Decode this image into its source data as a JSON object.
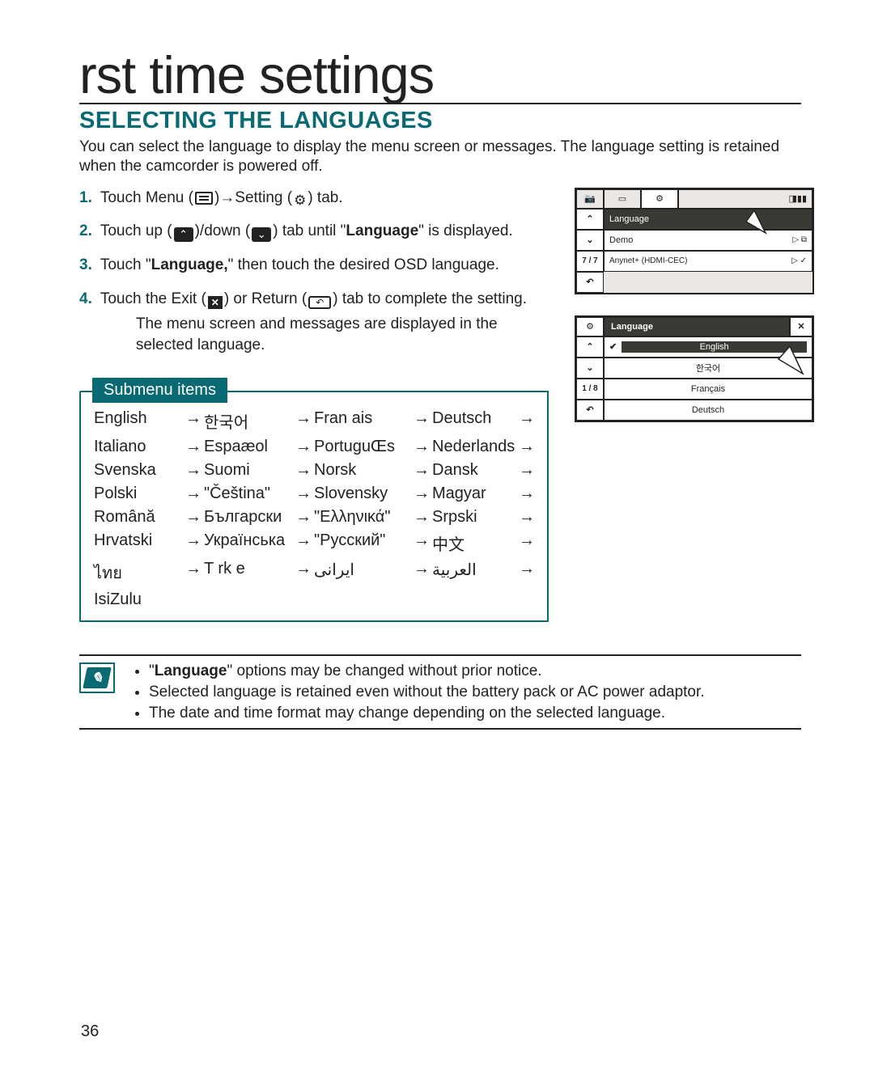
{
  "page_number": "36",
  "title": "rst time settings",
  "section": "SELECTING THE LANGUAGES",
  "intro": "You can select the language to display the menu screen or messages. The language setting is retained when the camcorder is powered off.",
  "colors": {
    "accent": "#0a6a74",
    "text": "#222222",
    "lcd_bg": "#e9e6e3",
    "lcd_highlight_bg": "#3a3934"
  },
  "steps": [
    {
      "num": "1.",
      "prefix": "Touch Menu (",
      "mid": ")→Setting (",
      "suffix": ") tab."
    },
    {
      "num": "2.",
      "prefix": "Touch up (",
      "mid": ")/down (",
      "suffix_pre": ") tab until \"",
      "bold": "Language",
      "suffix_post": "\" is displayed."
    },
    {
      "num": "3.",
      "prefix": "Touch \"",
      "bold": "Language,",
      "suffix": "\" then touch the desired OSD language."
    },
    {
      "num": "4.",
      "prefix": "Touch the Exit (",
      "mid": ") or Return (",
      "suffix": ") tab to complete the setting.",
      "bullet": "The menu screen and messages are displayed in the selected language."
    }
  ],
  "lcd1": {
    "status_icons": [
      "📷",
      "▭",
      "⚙",
      "◨▮▮"
    ],
    "page": "7 / 7",
    "rows": [
      {
        "label": "Language",
        "highlight": true
      },
      {
        "label": "Demo",
        "right": "▷ ⧉"
      },
      {
        "label": "Anynet+ (HDMI-CEC)",
        "right": "▷ ✓"
      }
    ],
    "nav": {
      "up": "⌃",
      "down": "⌄",
      "return": "↶"
    }
  },
  "lcd2": {
    "header_icon": "⚙",
    "header": "Language",
    "close": "✕",
    "page": "1 / 8",
    "rows": [
      {
        "check": true,
        "label": "English"
      },
      {
        "label": "한국어"
      },
      {
        "label": "Français"
      },
      {
        "label": "Deutsch"
      }
    ],
    "nav": {
      "up": "⌃",
      "down": "⌄",
      "return": "↶"
    }
  },
  "submenu": {
    "tab": "Submenu items",
    "cells": [
      "English",
      "→",
      "한국어",
      "→",
      "Fran ais",
      "→",
      "Deutsch",
      "→",
      "Italiano",
      "→",
      "Espaæol",
      "→",
      "PortuguŒs",
      "→",
      "Nederlands",
      "→",
      "Svenska",
      "→",
      "Suomi",
      "→",
      "Norsk",
      "→",
      "Dansk",
      "→",
      "Polski",
      "→",
      "\"Čeština\"",
      "→",
      "Slovensky",
      "→",
      "Magyar",
      "→",
      "Română",
      "→",
      "Български",
      "→",
      "\"Ελληνικά\"",
      "→",
      "Srpski",
      "→",
      "Hrvatski",
      "→",
      "Українська",
      "→",
      "\"Русский\"",
      "→",
      "中文",
      "→",
      "ไทย",
      "→",
      "T rk e",
      "→",
      "ﺍﻳﺮﺍﻧﯽ",
      "→",
      "ﺍﻟﻌﺮﺑﻴﺔ",
      "→",
      "IsiZulu",
      "",
      "",
      "",
      "",
      "",
      "",
      ""
    ]
  },
  "notes": [
    {
      "bold": "Language",
      "pre": "\"",
      "post": "\" options may be changed without prior notice."
    },
    {
      "text": "Selected language is retained even without the battery pack or AC power adaptor."
    },
    {
      "text": "The date and time format may change depending on the selected language."
    }
  ]
}
